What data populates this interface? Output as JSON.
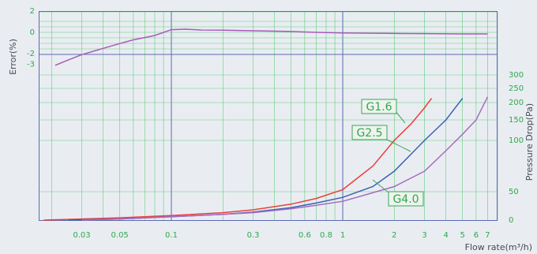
{
  "chart_data": {
    "type": "line",
    "x_axis": {
      "label": "Flow rate(m³/h)",
      "scale": "log",
      "range": [
        0.017,
        8
      ],
      "ticks": [
        {
          "value": 0.03,
          "label": "0.03"
        },
        {
          "value": 0.05,
          "label": "0.05"
        },
        {
          "value": 0.1,
          "label": "0.1"
        },
        {
          "value": 0.3,
          "label": "0.3"
        },
        {
          "value": 0.6,
          "label": "0.6"
        },
        {
          "value": 0.8,
          "label": "0.8"
        },
        {
          "value": 1,
          "label": "1"
        },
        {
          "value": 2,
          "label": "2"
        },
        {
          "value": 3,
          "label": "3"
        },
        {
          "value": 4,
          "label": "4"
        },
        {
          "value": 5,
          "label": "5"
        },
        {
          "value": 6,
          "label": "6"
        },
        {
          "value": 7,
          "label": "7"
        }
      ]
    },
    "error_panel": {
      "ylabel": "Error(%)",
      "ylim": [
        -3,
        2
      ],
      "tick_labels": [
        {
          "value": 2,
          "label": "2"
        },
        {
          "value": 0,
          "label": "0"
        },
        {
          "value": -2,
          "label": "-2"
        },
        {
          "value": -3,
          "label": "-3"
        }
      ],
      "series": [
        {
          "color": "#a85ab8",
          "points": [
            [
              0.021,
              -3.1
            ],
            [
              0.025,
              -2.6
            ],
            [
              0.03,
              -2.1
            ],
            [
              0.04,
              -1.5
            ],
            [
              0.05,
              -1.05
            ],
            [
              0.06,
              -0.7
            ],
            [
              0.08,
              -0.3
            ],
            [
              0.1,
              0.25
            ],
            [
              0.12,
              0.3
            ],
            [
              0.15,
              0.22
            ],
            [
              0.2,
              0.2
            ],
            [
              0.3,
              0.15
            ],
            [
              0.5,
              0.08
            ],
            [
              0.7,
              0.0
            ],
            [
              1,
              -0.05
            ],
            [
              1.5,
              -0.08
            ],
            [
              2,
              -0.1
            ],
            [
              3,
              -0.12
            ],
            [
              5,
              -0.15
            ],
            [
              7,
              -0.15
            ]
          ]
        }
      ]
    },
    "pressure_panel": {
      "ylabel": "Pressure Drop(Pa)",
      "tick_labels": [
        {
          "value": 0,
          "label": "0"
        },
        {
          "value": 50,
          "label": "50"
        },
        {
          "value": 100,
          "label": "100"
        },
        {
          "value": 150,
          "label": "150"
        },
        {
          "value": 200,
          "label": "200"
        },
        {
          "value": 250,
          "label": "250"
        },
        {
          "value": 300,
          "label": "300"
        }
      ],
      "series": [
        {
          "name": "G1.6",
          "color": "#e8413a",
          "points": [
            [
              0.018,
              0
            ],
            [
              0.03,
              2
            ],
            [
              0.05,
              4
            ],
            [
              0.1,
              8
            ],
            [
              0.2,
              13
            ],
            [
              0.3,
              18
            ],
            [
              0.5,
              28
            ],
            [
              0.7,
              38
            ],
            [
              1,
              52
            ],
            [
              1.5,
              75
            ],
            [
              2,
              100
            ],
            [
              2.5,
              140
            ],
            [
              3,
              185
            ],
            [
              3.3,
              215
            ]
          ]
        },
        {
          "name": "G2.5",
          "color": "#3c62b2",
          "points": [
            [
              0.025,
              0
            ],
            [
              0.05,
              2
            ],
            [
              0.1,
              6
            ],
            [
              0.2,
              10
            ],
            [
              0.3,
              14
            ],
            [
              0.5,
              22
            ],
            [
              0.7,
              30
            ],
            [
              1,
              40
            ],
            [
              1.5,
              55
            ],
            [
              2,
              70
            ],
            [
              3,
              100
            ],
            [
              4,
              150
            ],
            [
              5,
              215
            ]
          ]
        },
        {
          "name": "G4.0",
          "color": "#a86ac0",
          "points": [
            [
              0.03,
              0
            ],
            [
              0.05,
              2
            ],
            [
              0.1,
              6
            ],
            [
              0.2,
              10
            ],
            [
              0.3,
              13
            ],
            [
              0.5,
              20
            ],
            [
              0.7,
              26
            ],
            [
              1,
              33
            ],
            [
              2,
              55
            ],
            [
              3,
              70
            ],
            [
              4,
              90
            ],
            [
              5,
              115
            ],
            [
              6,
              150
            ],
            [
              7,
              220
            ]
          ]
        }
      ]
    }
  }
}
